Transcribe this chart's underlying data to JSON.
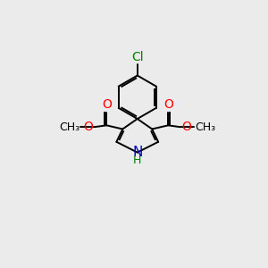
{
  "bg_color": "#ebebeb",
  "bond_color": "#000000",
  "bond_width": 1.4,
  "atom_colors": {
    "C": "#000000",
    "O": "#ff0000",
    "N": "#0000cd",
    "Cl": "#008000",
    "H": "#008000"
  },
  "font_size": 10,
  "font_size_cl": 10
}
